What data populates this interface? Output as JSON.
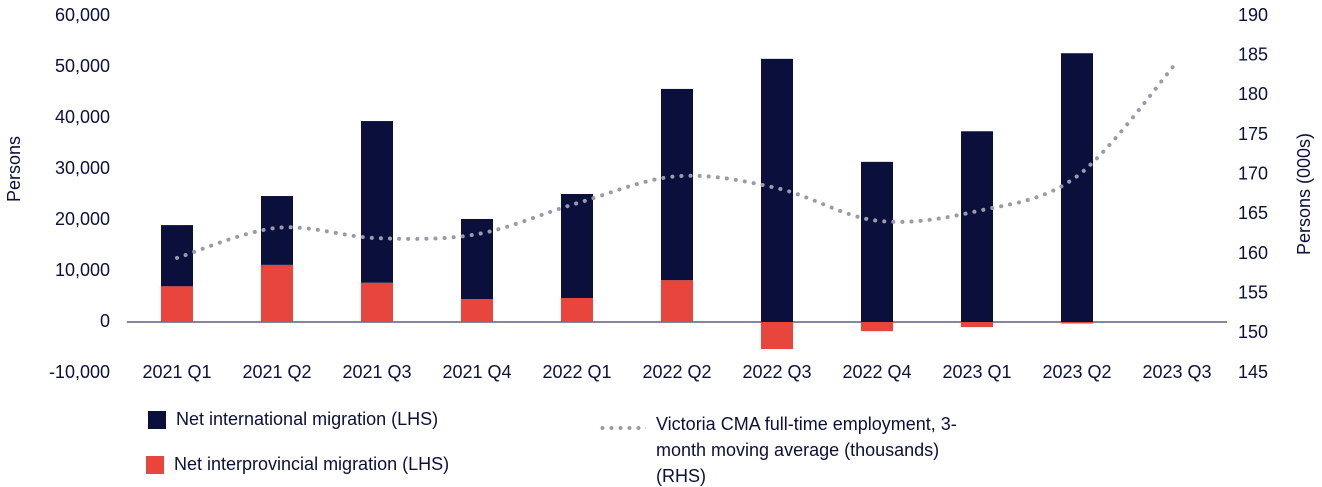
{
  "chart_data": {
    "type": "bar",
    "categories": [
      "2021 Q1",
      "2021 Q2",
      "2021 Q3",
      "2021 Q4",
      "2022 Q1",
      "2022 Q2",
      "2022 Q3",
      "2022 Q4",
      "2023 Q1",
      "2023 Q2",
      "2023 Q3"
    ],
    "series": [
      {
        "name": "Net international migration (LHS)",
        "color": "#0a0f3c",
        "type": "bar",
        "values": [
          12000,
          13500,
          31700,
          15700,
          20400,
          37500,
          51600,
          31400,
          37400,
          52700,
          null
        ]
      },
      {
        "name": "Net interprovincial migration (LHS)",
        "color": "#e8453c",
        "type": "bar",
        "values": [
          7000,
          11200,
          7700,
          4500,
          4700,
          8200,
          -5300,
          -1800,
          -1000,
          -300,
          null
        ]
      },
      {
        "name": "Victoria CMA full-time employment, 3-month moving average (thousands) (RHS)",
        "color": "#9a9aab",
        "type": "line",
        "axis": "y2",
        "values": [
          159.5,
          163.3,
          162.0,
          162.5,
          166.4,
          169.8,
          168.3,
          164.2,
          165.4,
          169.8,
          184.2
        ]
      }
    ],
    "ylabel": "Persons",
    "y2label": "Persons (000s)",
    "ylim": [
      -10000,
      60000
    ],
    "yticks": [
      {
        "value": -10000,
        "label": "-10,000"
      },
      0,
      {
        "value": 10000,
        "label": "10,000"
      },
      {
        "value": 20000,
        "label": "20,000"
      },
      {
        "value": 30000,
        "label": "30,000"
      },
      {
        "value": 40000,
        "label": "40,000"
      },
      {
        "value": 50000,
        "label": "50,000"
      },
      {
        "value": 60000,
        "label": "60,000"
      }
    ],
    "y2lim": [
      145,
      190
    ],
    "y2ticks": [
      145,
      150,
      155,
      160,
      165,
      170,
      175,
      180,
      185,
      190
    ],
    "stacked": true,
    "grid": false
  }
}
